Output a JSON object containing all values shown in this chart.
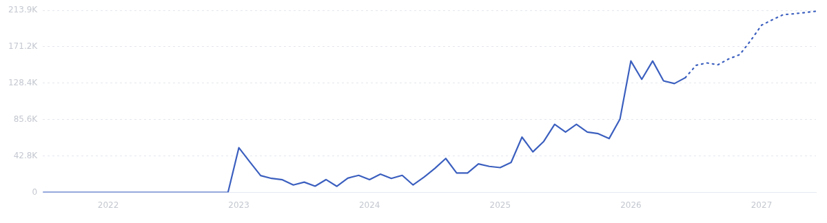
{
  "chart_data": {
    "type": "line",
    "x": [
      "2021-07",
      "2021-08",
      "2021-09",
      "2021-10",
      "2021-11",
      "2021-12",
      "2022-01",
      "2022-02",
      "2022-03",
      "2022-04",
      "2022-05",
      "2022-06",
      "2022-07",
      "2022-08",
      "2022-09",
      "2022-10",
      "2022-11",
      "2022-12",
      "2023-01",
      "2023-02",
      "2023-03",
      "2023-04",
      "2023-05",
      "2023-06",
      "2023-07",
      "2023-08",
      "2023-09",
      "2023-10",
      "2023-11",
      "2023-12",
      "2024-01",
      "2024-02",
      "2024-03",
      "2024-04",
      "2024-05",
      "2024-06",
      "2024-07",
      "2024-08",
      "2024-09",
      "2024-10",
      "2024-11",
      "2024-12",
      "2025-01",
      "2025-02",
      "2025-03",
      "2025-04",
      "2025-05",
      "2025-06",
      "2025-07",
      "2025-08",
      "2025-09",
      "2025-10",
      "2025-11",
      "2025-12",
      "2026-01",
      "2026-02",
      "2026-03",
      "2026-04",
      "2026-05",
      "2026-06",
      "2026-07",
      "2026-08",
      "2026-09",
      "2026-10",
      "2026-11",
      "2026-12",
      "2027-01",
      "2027-02",
      "2027-03",
      "2027-04",
      "2027-05",
      "2027-06"
    ],
    "series": [
      {
        "color": "#3b5fbf",
        "line_style": "solid",
        "values": [
          0,
          0,
          0,
          0,
          0,
          0,
          0,
          0,
          0,
          0,
          0,
          0,
          0,
          0,
          0,
          0,
          0,
          0,
          52600,
          36000,
          19800,
          16500,
          14900,
          8800,
          12100,
          7400,
          15100,
          7200,
          16800,
          20100,
          15100,
          21500,
          16500,
          20100,
          8800,
          17900,
          28300,
          39900,
          22900,
          22900,
          33600,
          30600,
          29200,
          35300,
          65000,
          47700,
          60000,
          80100,
          71000,
          80100,
          71000,
          69100,
          63300,
          86200,
          154500,
          133000,
          154500,
          131100,
          128000,
          134900,
          null,
          null,
          null,
          null,
          null,
          null,
          null,
          null,
          null,
          null,
          null,
          null
        ]
      },
      {
        "color": "#3b5fbf",
        "line_style": "dotted",
        "values": [
          null,
          null,
          null,
          null,
          null,
          null,
          null,
          null,
          null,
          null,
          null,
          null,
          null,
          null,
          null,
          null,
          null,
          null,
          null,
          null,
          null,
          null,
          null,
          null,
          null,
          null,
          null,
          null,
          null,
          null,
          null,
          null,
          null,
          null,
          null,
          null,
          null,
          null,
          null,
          null,
          null,
          null,
          null,
          null,
          null,
          null,
          null,
          null,
          null,
          null,
          null,
          null,
          null,
          null,
          null,
          null,
          null,
          null,
          null,
          134900,
          149500,
          152200,
          150100,
          157000,
          162000,
          178400,
          196600,
          203000,
          209000,
          210000,
          211500,
          213000
        ]
      }
    ],
    "xlim": [
      "2021-07",
      "2027-06"
    ],
    "xticks": [
      {
        "value": "2022-01",
        "label": "2022"
      },
      {
        "value": "2023-01",
        "label": "2023"
      },
      {
        "value": "2024-01",
        "label": "2024"
      },
      {
        "value": "2025-01",
        "label": "2025"
      },
      {
        "value": "2026-01",
        "label": "2026"
      },
      {
        "value": "2027-01",
        "label": "2027"
      }
    ],
    "ylim": [
      0,
      213900
    ],
    "yticks": [
      {
        "value": 0,
        "label": "0"
      },
      {
        "value": 42800,
        "label": "42.8K"
      },
      {
        "value": 85600,
        "label": "85.6K"
      },
      {
        "value": 128400,
        "label": "128.4K"
      },
      {
        "value": 171200,
        "label": "171.2K"
      },
      {
        "value": 213900,
        "label": "213.9K"
      }
    ],
    "grid": "y",
    "legend": false,
    "marker": "none"
  }
}
